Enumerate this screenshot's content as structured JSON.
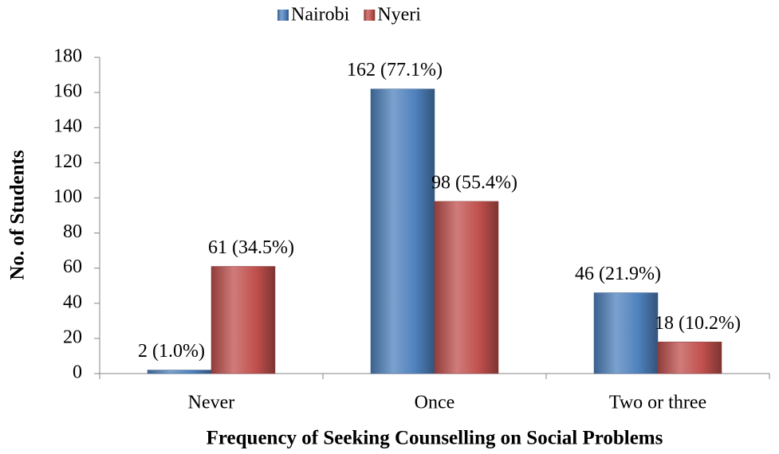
{
  "chart_data": {
    "type": "bar",
    "categories": [
      "Never",
      "Once",
      "Two or three"
    ],
    "series": [
      {
        "name": "Nairobi",
        "color": "#4f81bd",
        "values": [
          2,
          162,
          46
        ],
        "value_labels": [
          "2 (1.0%)",
          "162 (77.1%)",
          "46 (21.9%)"
        ]
      },
      {
        "name": "Nyeri",
        "color": "#c0504d",
        "values": [
          61,
          98,
          18
        ],
        "value_labels": [
          "61 (34.5%)",
          "98 (55.4%)",
          "18 (10.2%)"
        ]
      }
    ],
    "x_label": "Frequency of Seeking Counselling on Social Problems",
    "y_label": "No. of Students",
    "ylim": [
      0,
      180
    ],
    "yticks": [
      0,
      20,
      40,
      60,
      80,
      100,
      120,
      140,
      160,
      180
    ],
    "legend": "top",
    "grid": false
  }
}
